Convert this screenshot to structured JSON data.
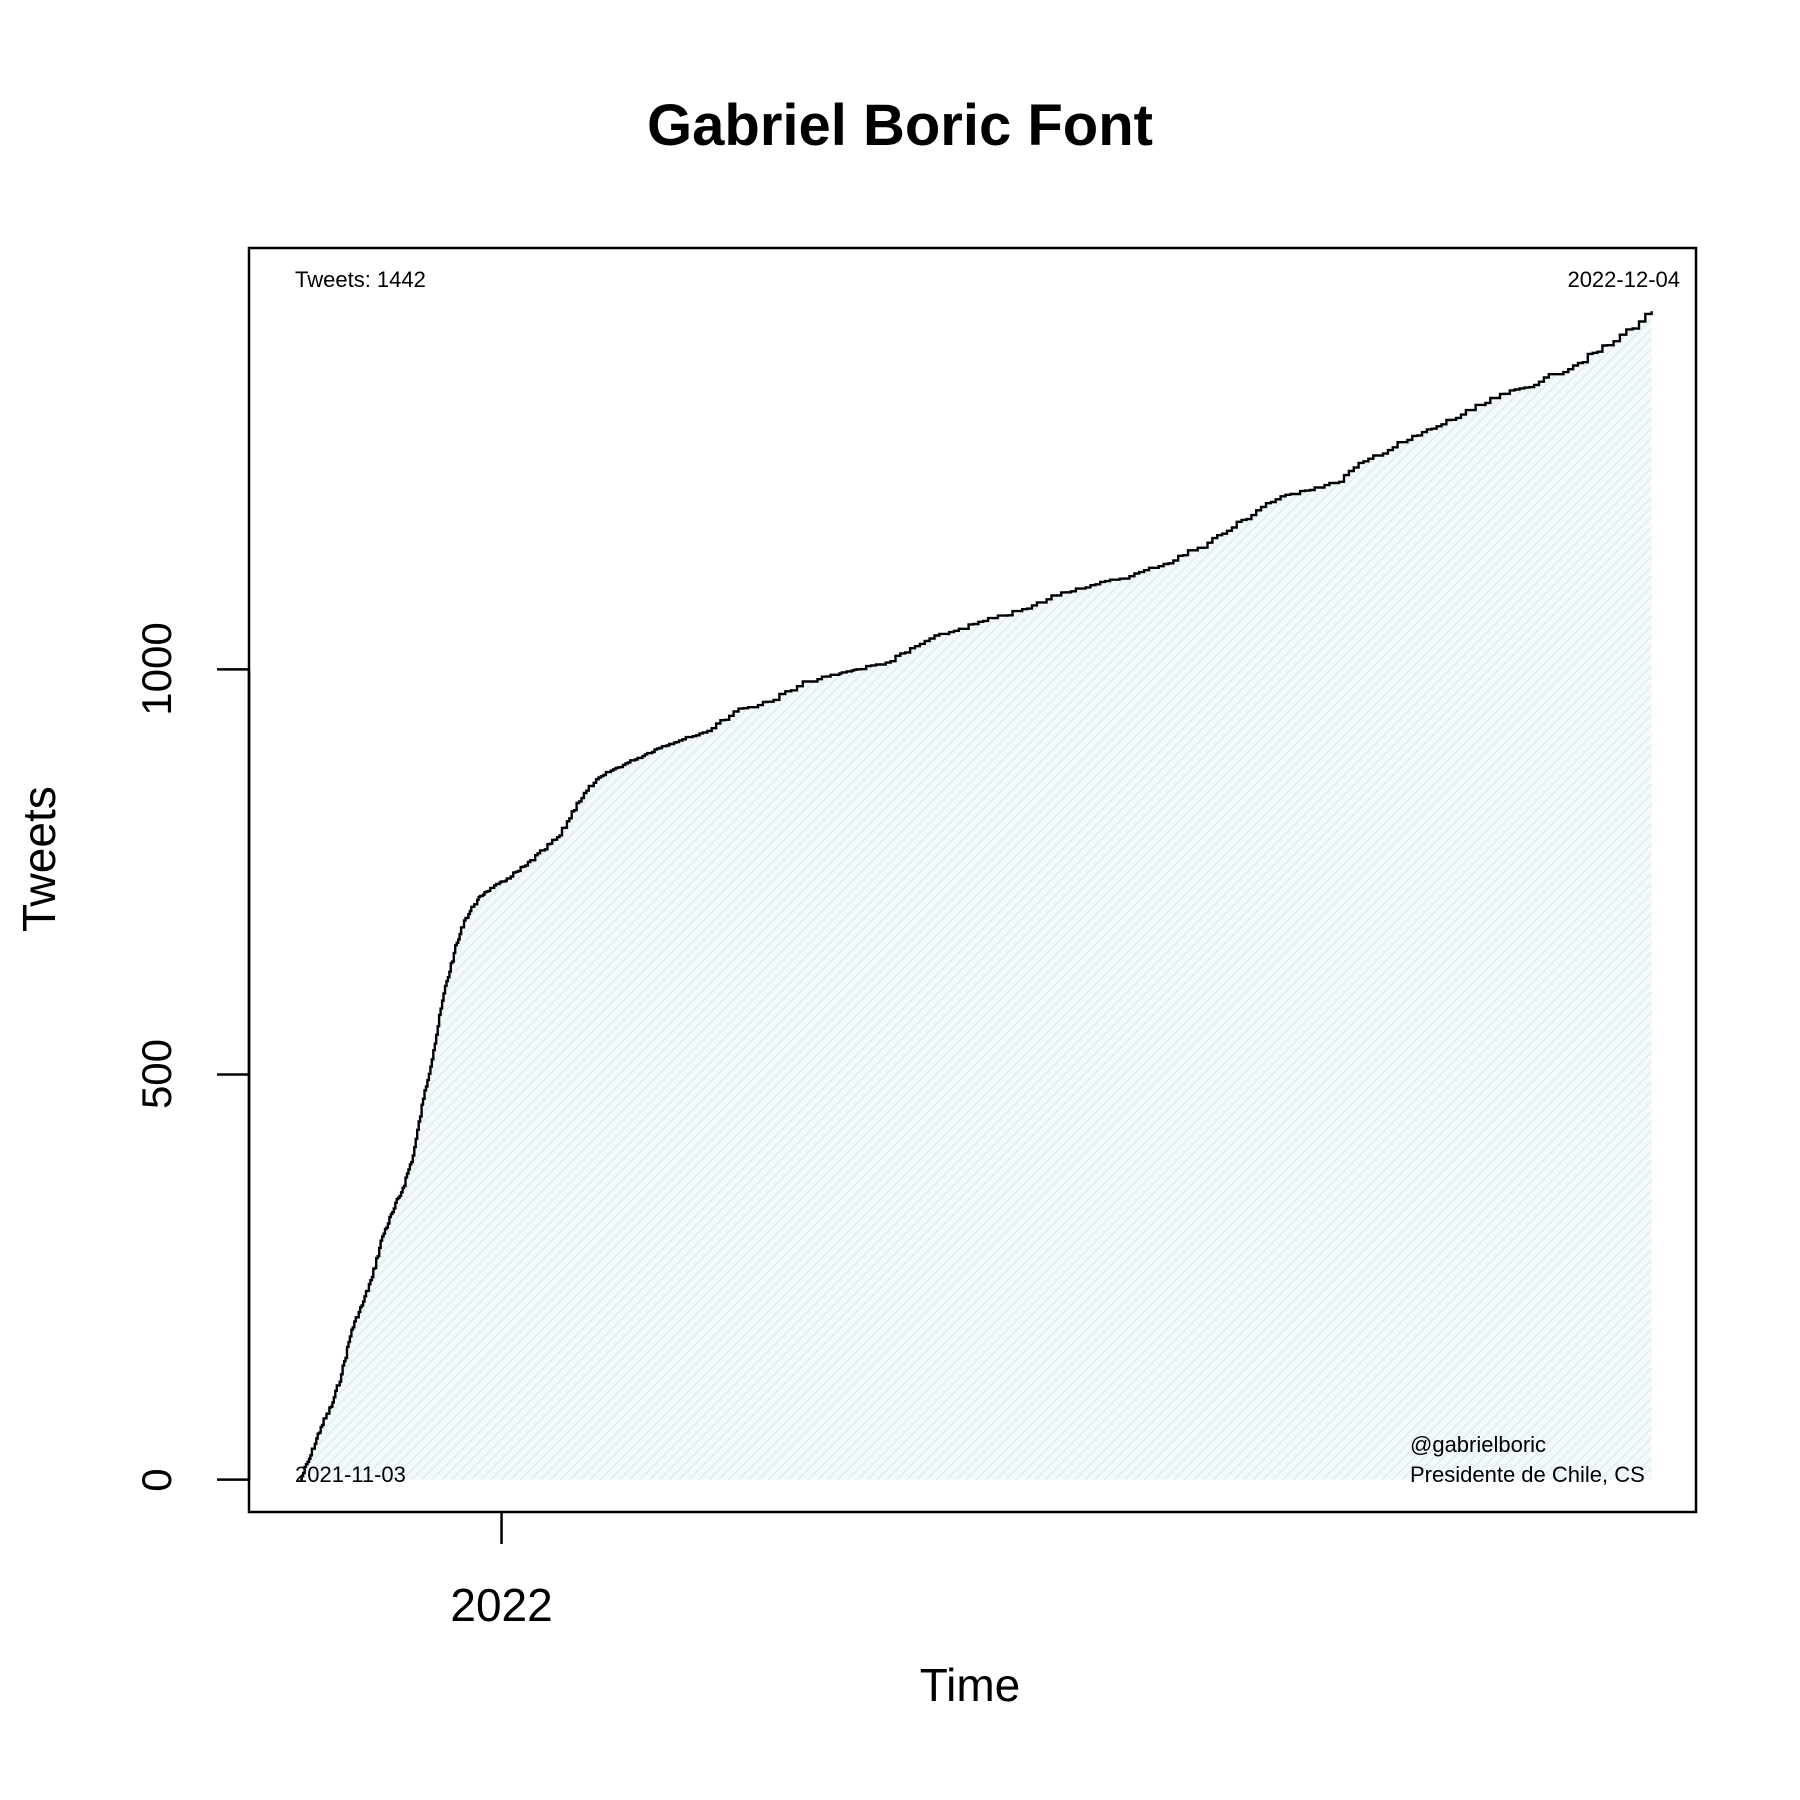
{
  "chart_data": {
    "type": "line",
    "title": "Gabriel Boric Font",
    "xlabel": "Time",
    "ylabel": "Tweets",
    "x_ticks": [
      "2022"
    ],
    "y_ticks": [
      0,
      500,
      1000
    ],
    "ylim": [
      -40,
      1520
    ],
    "xlim": [
      "2021-10-19",
      "2022-12-17"
    ],
    "fill": "hatched area under curve",
    "colors": {
      "line": "#000000",
      "fill": "#cfe8ee"
    },
    "annotations": {
      "tweets_total": "Tweets: 1442",
      "start_date": "2021-11-03",
      "end_date": "2022-12-04",
      "handle": "@gabrielboric",
      "subtitle": "Presidente de Chile, CS"
    },
    "series": [
      {
        "x": [
          "2021-11-03",
          "2021-11-06",
          "2021-11-09",
          "2021-11-12",
          "2021-11-15",
          "2021-11-18",
          "2021-11-21",
          "2021-11-24",
          "2021-11-27",
          "2021-11-30",
          "2021-12-03",
          "2021-12-06",
          "2021-12-09",
          "2021-12-12",
          "2021-12-15",
          "2021-12-18",
          "2021-12-21",
          "2021-12-24",
          "2021-12-27",
          "2021-12-31",
          "2022-01-03",
          "2022-01-08",
          "2022-01-13",
          "2022-01-18",
          "2022-01-23",
          "2022-01-28",
          "2022-02-02",
          "2022-02-07",
          "2022-02-12",
          "2022-02-17",
          "2022-02-22",
          "2022-03-01",
          "2022-03-10",
          "2022-03-20",
          "2022-04-01",
          "2022-04-10",
          "2022-04-15",
          "2022-04-25",
          "2022-05-05",
          "2022-05-15",
          "2022-05-25",
          "2022-06-04",
          "2022-06-14",
          "2022-06-24",
          "2022-07-04",
          "2022-07-14",
          "2022-07-24",
          "2022-08-03",
          "2022-08-13",
          "2022-08-23",
          "2022-09-02",
          "2022-09-12",
          "2022-09-22",
          "2022-10-02",
          "2022-10-12",
          "2022-10-22",
          "2022-11-01",
          "2022-11-11",
          "2022-11-21",
          "2022-12-04"
        ],
        "values": [
          0,
          30,
          65,
          90,
          130,
          185,
          215,
          250,
          300,
          330,
          360,
          400,
          470,
          530,
          600,
          650,
          690,
          710,
          725,
          735,
          742,
          758,
          776,
          795,
          835,
          860,
          875,
          885,
          895,
          905,
          912,
          922,
          948,
          960,
          985,
          995,
          1000,
          1010,
          1035,
          1050,
          1063,
          1075,
          1095,
          1105,
          1115,
          1130,
          1150,
          1175,
          1205,
          1220,
          1230,
          1260,
          1280,
          1300,
          1320,
          1340,
          1355,
          1375,
          1400,
          1442
        ]
      }
    ]
  }
}
